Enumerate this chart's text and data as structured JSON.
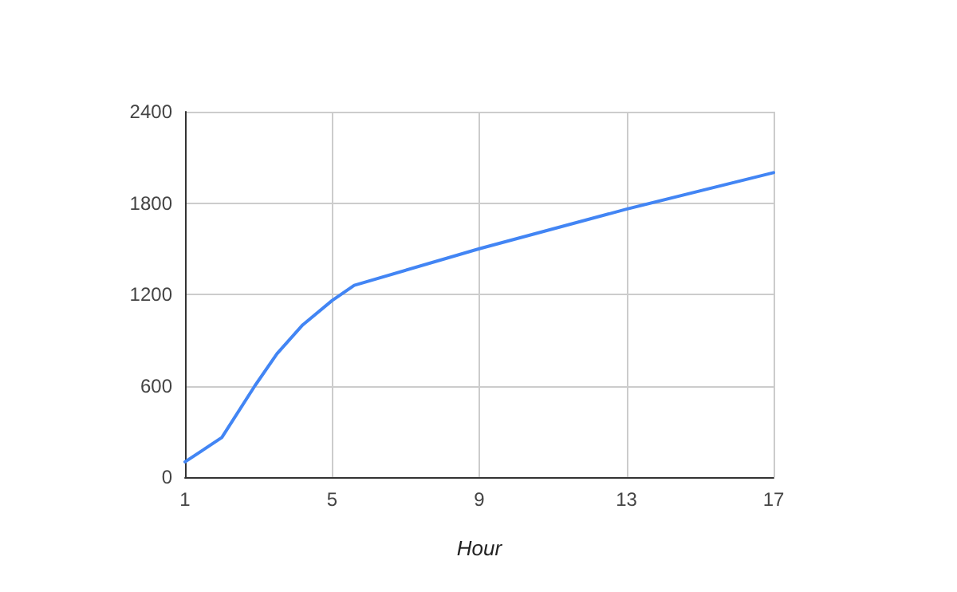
{
  "chart_data": {
    "type": "line",
    "xlabel": "Hour",
    "x": [
      1,
      2,
      2.9,
      3.5,
      4.2,
      5,
      5.6,
      9,
      13,
      17
    ],
    "series": [
      {
        "color": "#4285f4",
        "values": [
          100,
          260,
          600,
          810,
          1000,
          1160,
          1260,
          1500,
          1760,
          2000
        ]
      }
    ],
    "xlim": [
      1,
      17
    ],
    "xticks": [
      1,
      5,
      9,
      13,
      17
    ],
    "ylim": [
      0,
      2400
    ],
    "yticks": [
      0,
      600,
      1200,
      1800,
      2400
    ],
    "grid": true,
    "marker": "none",
    "line_style": "solid"
  }
}
